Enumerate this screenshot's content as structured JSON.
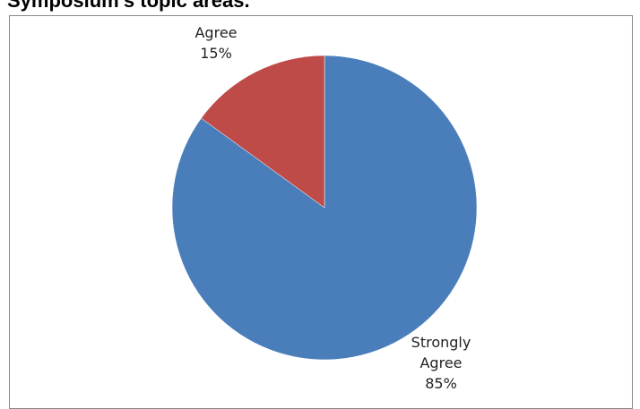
{
  "title_fragment": "Symposium's topic areas.",
  "chart_data": {
    "type": "pie",
    "title": "Symposium's topic areas.",
    "start_angle_deg": 0,
    "direction": "clockwise",
    "slices": [
      {
        "label_lines": [
          "Strongly",
          "Agree"
        ],
        "percent_text": "85%",
        "value": 85,
        "color": "#4a7ebb"
      },
      {
        "label_lines": [
          "Agree"
        ],
        "percent_text": "15%",
        "value": 15,
        "color": "#be4b48"
      }
    ]
  }
}
